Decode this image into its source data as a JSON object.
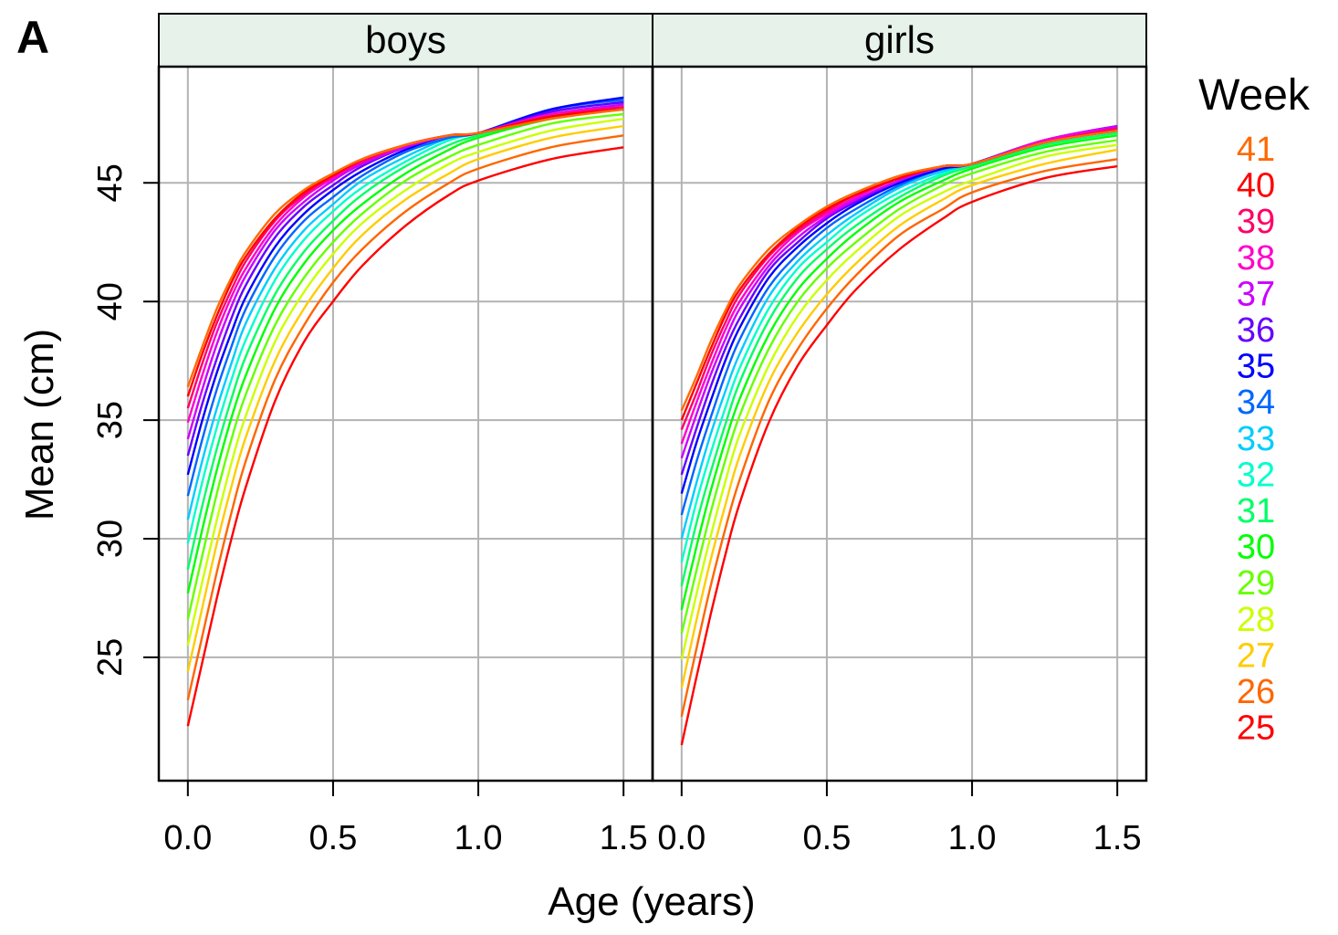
{
  "panel_label": "A",
  "chart_data": {
    "type": "line",
    "xlabel": "Age (years)",
    "ylabel": "Mean (cm)",
    "xlim": [
      -0.1,
      1.6
    ],
    "ylim": [
      19.8,
      49.9
    ],
    "x_ticks": [
      "0.0",
      "0.5",
      "1.0",
      "1.5"
    ],
    "y_ticks": [
      "25",
      "30",
      "35",
      "40",
      "45"
    ],
    "grid": true,
    "legend": {
      "title": "Week",
      "placement": "right",
      "entries": [
        {
          "label": "41",
          "color": "#FF6A00"
        },
        {
          "label": "40",
          "color": "#FF0000"
        },
        {
          "label": "39",
          "color": "#FF0066"
        },
        {
          "label": "38",
          "color": "#FF00CC"
        },
        {
          "label": "37",
          "color": "#CC00FF"
        },
        {
          "label": "36",
          "color": "#6600FF"
        },
        {
          "label": "35",
          "color": "#0000FF"
        },
        {
          "label": "34",
          "color": "#0066FF"
        },
        {
          "label": "33",
          "color": "#00CCFF"
        },
        {
          "label": "32",
          "color": "#00FFCC"
        },
        {
          "label": "31",
          "color": "#00FF66"
        },
        {
          "label": "30",
          "color": "#00FF00"
        },
        {
          "label": "29",
          "color": "#66FF00"
        },
        {
          "label": "28",
          "color": "#CCFF00"
        },
        {
          "label": "27",
          "color": "#FFCC00"
        },
        {
          "label": "26",
          "color": "#FF6600"
        },
        {
          "label": "25",
          "color": "#FF0000"
        }
      ]
    },
    "panels": [
      {
        "strip": "boys",
        "x": [
          0.0,
          0.05,
          0.1,
          0.15,
          0.2,
          0.3,
          0.4,
          0.5,
          0.6,
          0.75,
          0.9,
          1.0,
          1.25,
          1.5
        ],
        "series": [
          {
            "name": "25",
            "values": [
              22.1,
              24.8,
              27.5,
              30.0,
              32.2,
              35.8,
              38.3,
              40.0,
              41.5,
              43.2,
              44.5,
              45.1,
              46.0,
              46.5
            ]
          },
          {
            "name": "26",
            "values": [
              23.2,
              25.9,
              28.6,
              31.1,
              33.3,
              36.7,
              39.0,
              40.8,
              42.2,
              43.8,
              45.0,
              45.6,
              46.5,
              47.0
            ]
          },
          {
            "name": "27",
            "values": [
              24.4,
              27.1,
              29.8,
              32.2,
              34.3,
              37.5,
              39.7,
              41.4,
              42.8,
              44.3,
              45.4,
              46.0,
              46.9,
              47.4
            ]
          },
          {
            "name": "28",
            "values": [
              25.5,
              28.2,
              30.8,
              33.2,
              35.2,
              38.3,
              40.4,
              42.0,
              43.3,
              44.7,
              45.8,
              46.3,
              47.2,
              47.7
            ]
          },
          {
            "name": "29",
            "values": [
              26.6,
              29.3,
              31.9,
              34.2,
              36.1,
              39.0,
              41.0,
              42.5,
              43.7,
              45.1,
              46.1,
              46.6,
              47.5,
              47.9
            ]
          },
          {
            "name": "30",
            "values": [
              27.7,
              30.4,
              32.9,
              35.1,
              36.9,
              39.7,
              41.6,
              43.0,
              44.1,
              45.4,
              46.4,
              46.9,
              47.7,
              48.1
            ]
          },
          {
            "name": "31",
            "values": [
              28.7,
              31.4,
              33.8,
              35.9,
              37.7,
              40.3,
              42.1,
              43.4,
              44.5,
              45.7,
              46.6,
              47.0,
              47.8,
              48.2
            ]
          },
          {
            "name": "32",
            "values": [
              29.8,
              32.4,
              34.7,
              36.7,
              38.4,
              40.9,
              42.6,
              43.8,
              44.8,
              45.9,
              46.8,
              47.1,
              47.9,
              48.3
            ]
          },
          {
            "name": "33",
            "values": [
              30.8,
              33.3,
              35.5,
              37.4,
              39.1,
              41.4,
              43.0,
              44.1,
              45.1,
              46.1,
              46.9,
              47.1,
              48.0,
              48.4
            ]
          },
          {
            "name": "34",
            "values": [
              31.8,
              34.2,
              36.3,
              38.1,
              39.7,
              41.9,
              43.4,
              44.4,
              45.3,
              46.3,
              46.9,
              47.1,
              48.1,
              48.5
            ]
          },
          {
            "name": "35",
            "values": [
              32.7,
              35.0,
              37.0,
              38.7,
              40.2,
              42.3,
              43.7,
              44.7,
              45.5,
              46.4,
              47.0,
              47.1,
              48.1,
              48.6
            ]
          },
          {
            "name": "36",
            "values": [
              33.5,
              35.7,
              37.6,
              39.3,
              40.7,
              42.7,
              44.0,
              44.9,
              45.7,
              46.5,
              47.0,
              47.1,
              48.0,
              48.4
            ]
          },
          {
            "name": "37",
            "values": [
              34.2,
              36.3,
              38.2,
              39.8,
              41.1,
              43.0,
              44.2,
              45.1,
              45.8,
              46.5,
              47.0,
              47.1,
              47.9,
              48.3
            ]
          },
          {
            "name": "38",
            "values": [
              34.9,
              36.9,
              38.7,
              40.2,
              41.4,
              43.2,
              44.4,
              45.2,
              45.9,
              46.6,
              47.0,
              47.1,
              47.9,
              48.2
            ]
          },
          {
            "name": "39",
            "values": [
              35.5,
              37.4,
              39.1,
              40.5,
              41.7,
              43.4,
              44.5,
              45.3,
              45.9,
              46.6,
              47.0,
              47.1,
              47.8,
              48.2
            ]
          },
          {
            "name": "40",
            "values": [
              36.0,
              37.8,
              39.4,
              40.8,
              41.9,
              43.5,
              44.6,
              45.3,
              46.0,
              46.6,
              47.0,
              47.1,
              47.8,
              48.1
            ]
          },
          {
            "name": "41",
            "values": [
              36.4,
              38.1,
              39.7,
              41.0,
              42.1,
              43.7,
              44.7,
              45.4,
              46.0,
              46.6,
              47.0,
              47.1,
              47.7,
              48.1
            ]
          }
        ]
      },
      {
        "strip": "girls",
        "x": [
          0.0,
          0.05,
          0.1,
          0.15,
          0.2,
          0.3,
          0.4,
          0.5,
          0.6,
          0.75,
          0.9,
          1.0,
          1.25,
          1.5
        ],
        "series": [
          {
            "name": "25",
            "values": [
              21.3,
              24.1,
              26.8,
              29.3,
              31.5,
              34.9,
              37.3,
              39.0,
              40.5,
              42.2,
              43.5,
              44.2,
              45.2,
              45.7
            ]
          },
          {
            "name": "26",
            "values": [
              22.5,
              25.3,
              28.0,
              30.4,
              32.5,
              35.8,
              38.0,
              39.7,
              41.1,
              42.8,
              43.9,
              44.6,
              45.5,
              46.0
            ]
          },
          {
            "name": "27",
            "values": [
              23.7,
              26.5,
              29.1,
              31.4,
              33.5,
              36.6,
              38.7,
              40.3,
              41.6,
              43.2,
              44.3,
              44.9,
              45.8,
              46.4
            ]
          },
          {
            "name": "28",
            "values": [
              24.9,
              27.6,
              30.1,
              32.4,
              34.4,
              37.3,
              39.4,
              40.9,
              42.1,
              43.6,
              44.6,
              45.1,
              46.1,
              46.6
            ]
          },
          {
            "name": "29",
            "values": [
              26.0,
              28.6,
              31.1,
              33.3,
              35.2,
              38.0,
              40.0,
              41.4,
              42.5,
              43.9,
              44.9,
              45.4,
              46.3,
              46.8
            ]
          },
          {
            "name": "30",
            "values": [
              27.0,
              29.6,
              32.0,
              34.1,
              35.9,
              38.6,
              40.5,
              41.8,
              42.9,
              44.2,
              45.1,
              45.6,
              46.5,
              47.0
            ]
          },
          {
            "name": "31",
            "values": [
              28.0,
              30.6,
              32.8,
              34.8,
              36.6,
              39.2,
              41.0,
              42.2,
              43.2,
              44.4,
              45.3,
              45.7,
              46.6,
              47.1
            ]
          },
          {
            "name": "32",
            "values": [
              29.0,
              31.5,
              33.6,
              35.5,
              37.2,
              39.7,
              41.4,
              42.5,
              43.5,
              44.6,
              45.4,
              45.8,
              46.7,
              47.2
            ]
          },
          {
            "name": "33",
            "values": [
              30.0,
              32.3,
              34.4,
              36.2,
              37.8,
              40.2,
              41.7,
              42.8,
              43.7,
              44.8,
              45.5,
              45.8,
              46.8,
              47.3
            ]
          },
          {
            "name": "34",
            "values": [
              31.0,
              33.2,
              35.1,
              36.9,
              38.4,
              40.6,
              42.0,
              43.1,
              43.9,
              44.9,
              45.6,
              45.8,
              46.8,
              47.3
            ]
          },
          {
            "name": "35",
            "values": [
              31.9,
              34.0,
              35.8,
              37.5,
              38.9,
              41.0,
              42.3,
              43.3,
              44.1,
              45.0,
              45.6,
              45.8,
              46.8,
              47.4
            ]
          },
          {
            "name": "36",
            "values": [
              32.7,
              34.6,
              36.4,
              38.0,
              39.3,
              41.3,
              42.5,
              43.5,
              44.2,
              45.1,
              45.7,
              45.8,
              46.8,
              47.4
            ]
          },
          {
            "name": "37",
            "values": [
              33.4,
              35.2,
              36.9,
              38.4,
              39.7,
              41.5,
              42.7,
              43.6,
              44.3,
              45.1,
              45.7,
              45.8,
              46.8,
              47.4
            ]
          },
          {
            "name": "38",
            "values": [
              34.0,
              35.7,
              37.3,
              38.8,
              40.0,
              41.7,
              42.9,
              43.7,
              44.4,
              45.2,
              45.7,
              45.8,
              46.8,
              47.3
            ]
          },
          {
            "name": "39",
            "values": [
              34.6,
              36.1,
              37.7,
              39.1,
              40.3,
              41.9,
              43.0,
              43.8,
              44.5,
              45.2,
              45.7,
              45.8,
              46.7,
              47.3
            ]
          },
          {
            "name": "40",
            "values": [
              35.0,
              36.5,
              38.0,
              39.4,
              40.5,
              42.0,
              43.1,
              43.9,
              44.5,
              45.2,
              45.7,
              45.8,
              46.7,
              47.2
            ]
          },
          {
            "name": "41",
            "values": [
              35.4,
              36.8,
              38.3,
              39.6,
              40.7,
              42.2,
              43.2,
              44.0,
              44.6,
              45.3,
              45.7,
              45.8,
              46.7,
              47.2
            ]
          }
        ]
      }
    ]
  }
}
